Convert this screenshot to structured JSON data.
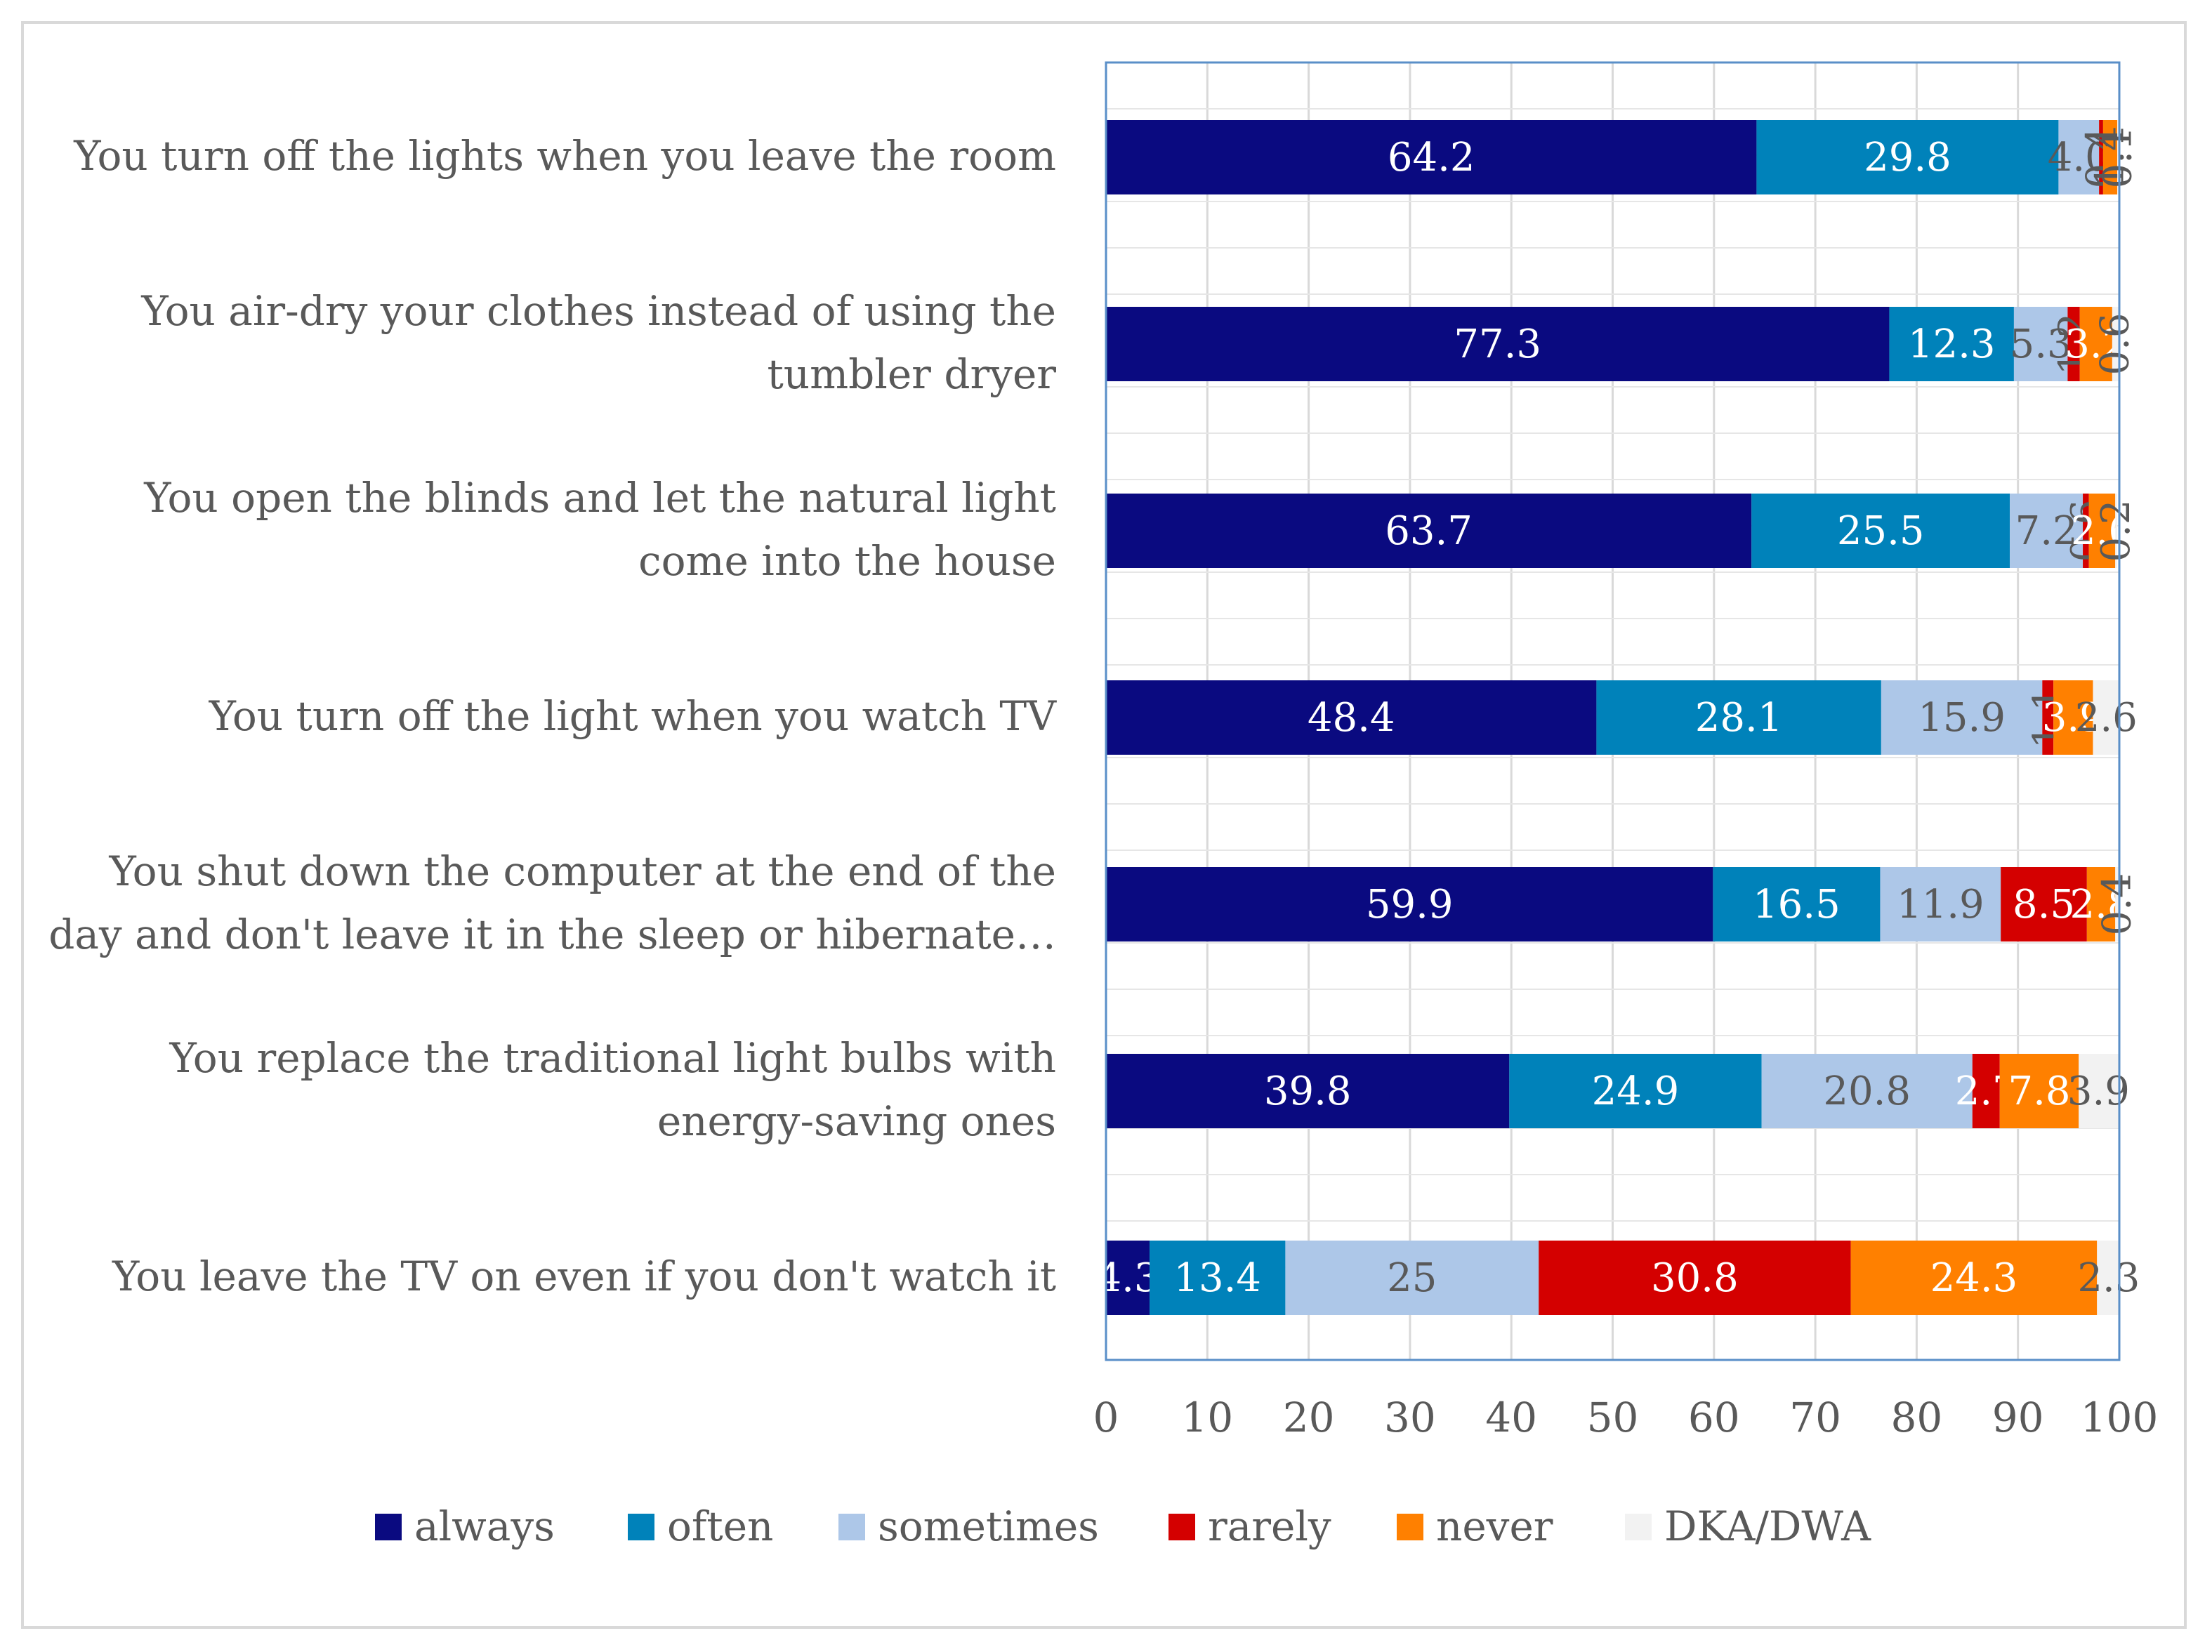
{
  "chart_data": {
    "type": "bar",
    "orientation": "horizontal",
    "stacked": true,
    "title": "",
    "xlabel": "",
    "ylabel": "",
    "xlim": [
      0,
      100
    ],
    "xticks": [
      "0",
      "10",
      "20",
      "30",
      "40",
      "50",
      "60",
      "70",
      "80",
      "90",
      "100"
    ],
    "grid": true,
    "legend_position": "bottom",
    "categories": [
      [
        "You turn off the lights when you leave the room"
      ],
      [
        "You air-dry your clothes instead of using the",
        "tumbler dryer"
      ],
      [
        "You open the blinds and let the natural light",
        "come into the house"
      ],
      [
        "You turn off the light when you watch TV"
      ],
      [
        "You shut down the computer at the end of the",
        "day and don't leave it in the sleep or hibernate…"
      ],
      [
        "You replace the traditional light bulbs with",
        "energy-saving ones"
      ],
      [
        "You leave the TV on even if you don't watch it"
      ]
    ],
    "series": [
      {
        "name": "always",
        "color": "#0a0a80",
        "label_color": "#ffffff",
        "values": [
          64.2,
          77.3,
          63.7,
          48.4,
          59.9,
          39.8,
          4.3
        ]
      },
      {
        "name": "often",
        "color": "#0082ba",
        "label_color": "#ffffff",
        "values": [
          29.8,
          12.3,
          25.5,
          28.1,
          16.5,
          24.9,
          13.4
        ]
      },
      {
        "name": "sometimes",
        "color": "#adc7e8",
        "label_color": "#595959",
        "values": [
          4.0,
          5.3,
          7.2,
          15.9,
          11.9,
          20.8,
          25
        ]
      },
      {
        "name": "rarely",
        "color": "#d40000",
        "label_color": "#ffffff",
        "values": [
          0.4,
          1.2,
          0.6,
          1.1,
          8.5,
          2.7,
          30.8
        ]
      },
      {
        "name": "never",
        "color": "#ff8000",
        "label_color": "#ffffff",
        "values": [
          1.4,
          3.2,
          2.6,
          3.9,
          2.8,
          7.8,
          24.3
        ]
      },
      {
        "name": "DKA/DWA",
        "color": "#f2f2f2",
        "label_color": "#595959",
        "values": [
          0.1,
          0.6,
          0.2,
          2.6,
          0.4,
          3.9,
          2.3
        ]
      }
    ],
    "value_labels": [
      [
        "64.2",
        "29.8",
        "4.0",
        "0.4",
        "1.4",
        "0.1"
      ],
      [
        "77.3",
        "12.3",
        "5.3",
        "1.2",
        "3.2",
        "0.6"
      ],
      [
        "63.7",
        "25.5",
        "7.2",
        "0.6",
        "2.6",
        "0.2"
      ],
      [
        "48.4",
        "28.1",
        "15.9",
        "1.1",
        "3.9",
        "2.6"
      ],
      [
        "59.9",
        "16.5",
        "11.9",
        "8.5",
        "2.8",
        "0.4"
      ],
      [
        "39.8",
        "24.9",
        "20.8",
        "2.7",
        "7.8",
        "3.9"
      ],
      [
        "4.3",
        "13.4",
        "25",
        "30.8",
        "24.3",
        "2.3"
      ]
    ]
  }
}
